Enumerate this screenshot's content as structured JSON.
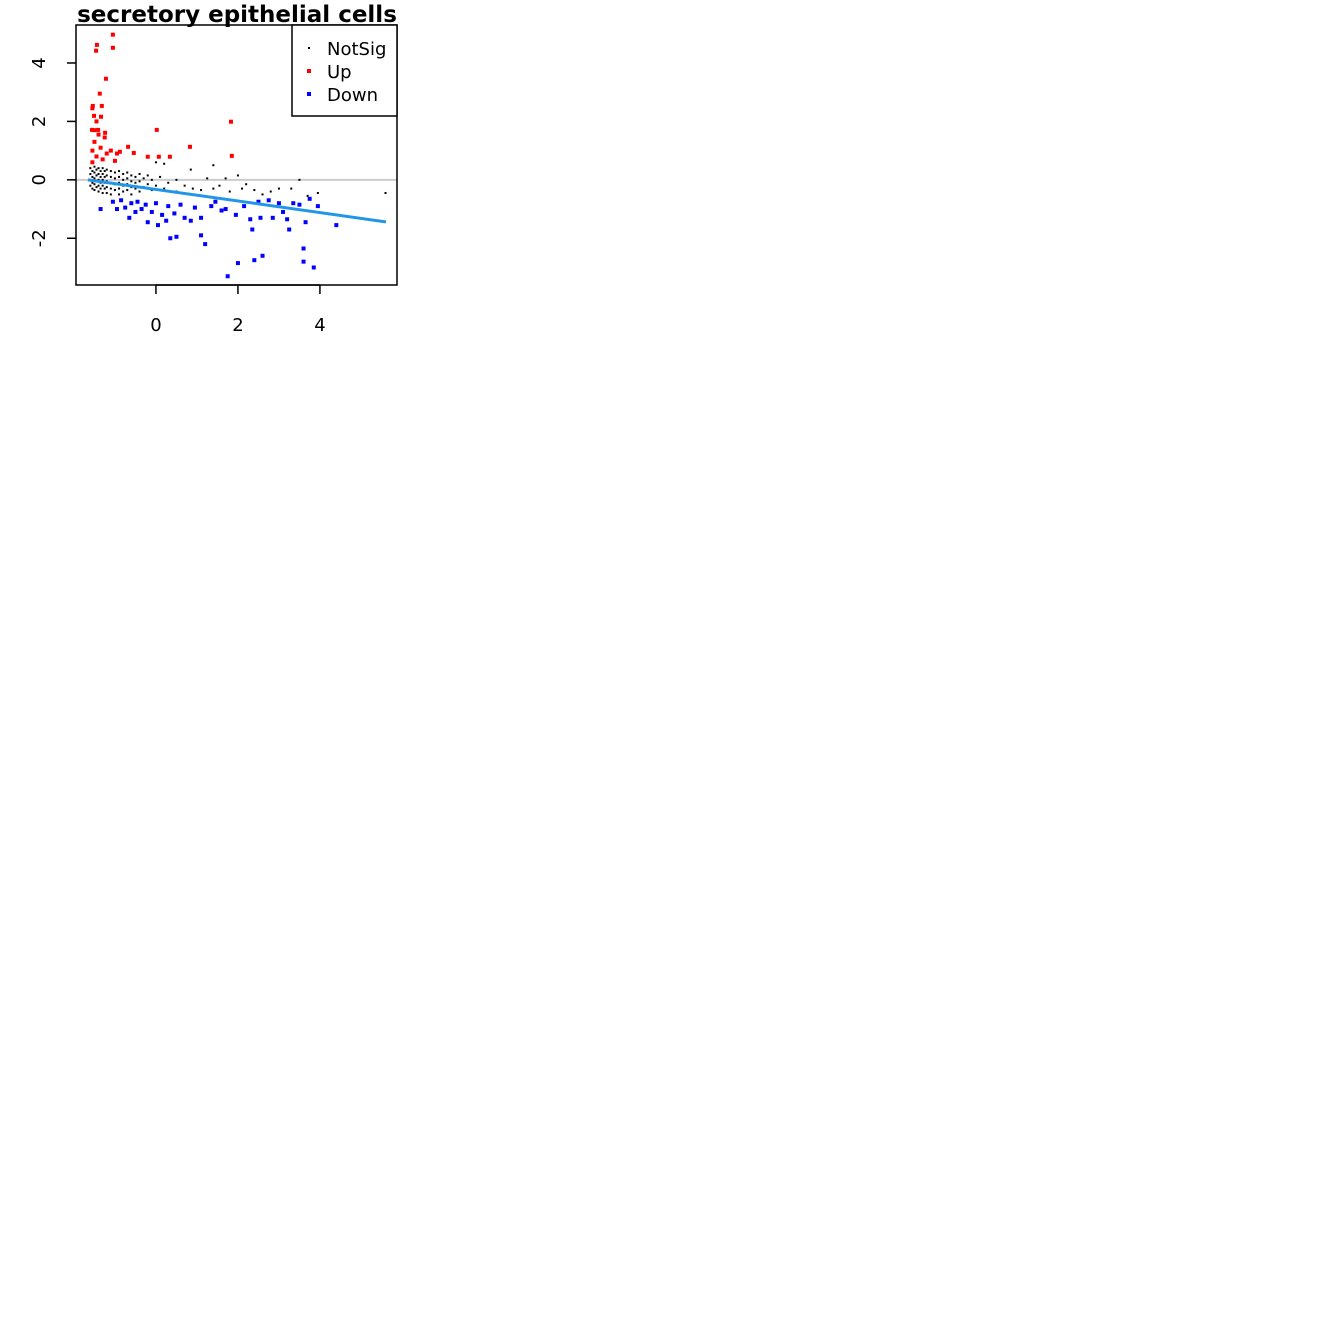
{
  "chart_data": {
    "type": "scatter",
    "title": "secretory epithelial cells",
    "xlabel": "",
    "ylabel": "",
    "xlim": [
      -1.95,
      5.88
    ],
    "ylim": [
      -3.6,
      5.3
    ],
    "x_ticks": [
      0,
      2,
      4
    ],
    "y_ticks": [
      -2,
      0,
      2,
      4
    ],
    "grid": false,
    "legend_position": "top-right",
    "reference_line": {
      "y": 0,
      "color": "#cccccc"
    },
    "trend_line": {
      "x": [
        -1.66,
        5.61
      ],
      "y": [
        0.0,
        -1.44
      ],
      "color": "#2196e8"
    },
    "series": [
      {
        "name": "NotSig",
        "color": "#000000",
        "points": [
          [
            -1.6,
            0.4
          ],
          [
            -1.6,
            0.2
          ],
          [
            -1.6,
            0
          ],
          [
            -1.6,
            -0.2
          ],
          [
            -1.55,
            0.3
          ],
          [
            -1.55,
            0.1
          ],
          [
            -1.55,
            -0.1
          ],
          [
            -1.55,
            -0.3
          ],
          [
            -1.5,
            0.45
          ],
          [
            -1.5,
            0.25
          ],
          [
            -1.5,
            0.05
          ],
          [
            -1.5,
            -0.15
          ],
          [
            -1.5,
            -0.35
          ],
          [
            -1.45,
            0.35
          ],
          [
            -1.45,
            0.15
          ],
          [
            -1.45,
            -0.05
          ],
          [
            -1.45,
            -0.25
          ],
          [
            -1.4,
            0.4
          ],
          [
            -1.4,
            0.2
          ],
          [
            -1.4,
            0
          ],
          [
            -1.4,
            -0.2
          ],
          [
            -1.4,
            -0.4
          ],
          [
            -1.35,
            0.3
          ],
          [
            -1.35,
            0.1
          ],
          [
            -1.35,
            -0.1
          ],
          [
            -1.35,
            -0.3
          ],
          [
            -1.3,
            0.4
          ],
          [
            -1.3,
            0.2
          ],
          [
            -1.3,
            0
          ],
          [
            -1.3,
            -0.2
          ],
          [
            -1.3,
            -0.45
          ],
          [
            -1.25,
            0.3
          ],
          [
            -1.25,
            0.1
          ],
          [
            -1.25,
            -0.1
          ],
          [
            -1.25,
            -0.3
          ],
          [
            -1.2,
            0.35
          ],
          [
            -1.2,
            0.15
          ],
          [
            -1.2,
            -0.05
          ],
          [
            -1.2,
            -0.25
          ],
          [
            -1.2,
            -0.45
          ],
          [
            -1.1,
            0.3
          ],
          [
            -1.1,
            0.1
          ],
          [
            -1.1,
            -0.1
          ],
          [
            -1.1,
            -0.3
          ],
          [
            -1.1,
            -0.5
          ],
          [
            -1.0,
            0.25
          ],
          [
            -1.0,
            0.05
          ],
          [
            -1.0,
            -0.15
          ],
          [
            -1.0,
            -0.35
          ],
          [
            -0.9,
            0.3
          ],
          [
            -0.9,
            0.1
          ],
          [
            -0.9,
            -0.1
          ],
          [
            -0.9,
            -0.3
          ],
          [
            -0.9,
            -0.5
          ],
          [
            -0.8,
            0.2
          ],
          [
            -0.8,
            0
          ],
          [
            -0.8,
            -0.2
          ],
          [
            -0.8,
            -0.4
          ],
          [
            -0.7,
            0.25
          ],
          [
            -0.7,
            0.05
          ],
          [
            -0.7,
            -0.15
          ],
          [
            -0.7,
            -0.35
          ],
          [
            -0.6,
            0.15
          ],
          [
            -0.6,
            -0.05
          ],
          [
            -0.6,
            -0.25
          ],
          [
            -0.6,
            -0.5
          ],
          [
            -0.5,
            0.1
          ],
          [
            -0.5,
            -0.1
          ],
          [
            -0.5,
            -0.3
          ],
          [
            -0.4,
            0.2
          ],
          [
            -0.4,
            -0.05
          ],
          [
            -0.4,
            -0.4
          ],
          [
            -0.3,
            0.05
          ],
          [
            -0.3,
            -0.25
          ],
          [
            -0.2,
            0.15
          ],
          [
            -0.2,
            -0.15
          ],
          [
            -0.1,
            0.0
          ],
          [
            -0.1,
            -0.35
          ],
          [
            0,
            0.6
          ],
          [
            0,
            -0.2
          ],
          [
            0.1,
            0.1
          ],
          [
            0.2,
            0.55
          ],
          [
            0.2,
            -0.3
          ],
          [
            0.3,
            -0.1
          ],
          [
            0.5,
            0.0
          ],
          [
            0.5,
            -0.4
          ],
          [
            0.7,
            -0.2
          ],
          [
            0.85,
            0.35
          ],
          [
            0.9,
            -0.3
          ],
          [
            1.1,
            -0.35
          ],
          [
            1.25,
            0.05
          ],
          [
            1.4,
            0.5
          ],
          [
            1.4,
            -0.3
          ],
          [
            1.55,
            -0.2
          ],
          [
            1.7,
            0.05
          ],
          [
            1.8,
            -0.4
          ],
          [
            2.0,
            0.15
          ],
          [
            2.1,
            -0.3
          ],
          [
            2.2,
            -0.15
          ],
          [
            2.4,
            -0.35
          ],
          [
            2.6,
            -0.5
          ],
          [
            2.8,
            -0.4
          ],
          [
            3.0,
            -0.3
          ],
          [
            3.3,
            -0.3
          ],
          [
            3.5,
            0.0
          ],
          [
            3.7,
            -0.55
          ],
          [
            3.95,
            -0.45
          ],
          [
            5.6,
            -0.45
          ]
        ]
      },
      {
        "name": "Up",
        "color": "#ff0000",
        "points": [
          [
            -1.05,
            4.97
          ],
          [
            -1.44,
            4.62
          ],
          [
            -1.46,
            4.42
          ],
          [
            -1.05,
            4.52
          ],
          [
            -1.22,
            3.46
          ],
          [
            -1.37,
            2.95
          ],
          [
            -1.32,
            2.53
          ],
          [
            -1.54,
            2.53
          ],
          [
            -1.51,
            2.19
          ],
          [
            -1.34,
            2.16
          ],
          [
            1.83,
            1.99
          ],
          [
            0.02,
            1.71
          ],
          [
            -1.56,
            1.71
          ],
          [
            -1.41,
            1.71
          ],
          [
            -1.24,
            1.61
          ],
          [
            0.83,
            1.13
          ],
          [
            -0.68,
            1.13
          ],
          [
            1.85,
            0.82
          ],
          [
            -0.2,
            0.79
          ],
          [
            0.07,
            0.79
          ],
          [
            0.34,
            0.79
          ],
          [
            -0.88,
            0.96
          ],
          [
            -0.54,
            0.92
          ],
          [
            -1.55,
            1.0
          ],
          [
            -1.5,
            1.3
          ],
          [
            -1.45,
            0.8
          ],
          [
            -1.55,
            0.6
          ],
          [
            -1.4,
            1.55
          ],
          [
            -1.35,
            1.1
          ],
          [
            -1.3,
            0.7
          ],
          [
            -1.25,
            1.45
          ],
          [
            -1.2,
            0.9
          ],
          [
            -1.1,
            1.0
          ],
          [
            -1.0,
            0.65
          ],
          [
            -0.95,
            0.9
          ],
          [
            -1.5,
            1.7
          ],
          [
            -1.45,
            2.0
          ],
          [
            -1.55,
            2.45
          ]
        ]
      },
      {
        "name": "Down",
        "color": "#0000ff",
        "points": [
          [
            -1.35,
            -1.0
          ],
          [
            -1.05,
            -0.75
          ],
          [
            -0.95,
            -1.0
          ],
          [
            -0.85,
            -0.7
          ],
          [
            -0.75,
            -0.95
          ],
          [
            -0.65,
            -1.3
          ],
          [
            -0.6,
            -0.8
          ],
          [
            -0.5,
            -1.1
          ],
          [
            -0.45,
            -0.75
          ],
          [
            -0.35,
            -1.0
          ],
          [
            -0.25,
            -0.85
          ],
          [
            -0.2,
            -1.45
          ],
          [
            -0.1,
            -1.1
          ],
          [
            0,
            -0.8
          ],
          [
            0.05,
            -1.55
          ],
          [
            0.15,
            -1.2
          ],
          [
            0.25,
            -1.4
          ],
          [
            0.3,
            -0.9
          ],
          [
            0.35,
            -2.0
          ],
          [
            0.45,
            -1.15
          ],
          [
            0.5,
            -1.95
          ],
          [
            0.6,
            -0.85
          ],
          [
            0.7,
            -1.3
          ],
          [
            0.85,
            -1.4
          ],
          [
            0.95,
            -0.95
          ],
          [
            1.1,
            -1.3
          ],
          [
            1.1,
            -1.9
          ],
          [
            1.2,
            -2.2
          ],
          [
            1.35,
            -0.9
          ],
          [
            1.45,
            -0.75
          ],
          [
            1.6,
            -1.05
          ],
          [
            1.7,
            -1.0
          ],
          [
            1.75,
            -3.3
          ],
          [
            1.95,
            -1.2
          ],
          [
            2.0,
            -2.85
          ],
          [
            2.15,
            -0.9
          ],
          [
            2.3,
            -1.35
          ],
          [
            2.35,
            -1.7
          ],
          [
            2.4,
            -2.75
          ],
          [
            2.5,
            -0.75
          ],
          [
            2.55,
            -1.3
          ],
          [
            2.6,
            -2.6
          ],
          [
            2.75,
            -0.7
          ],
          [
            2.85,
            -1.3
          ],
          [
            3.0,
            -0.8
          ],
          [
            3.1,
            -1.1
          ],
          [
            3.2,
            -1.35
          ],
          [
            3.25,
            -1.7
          ],
          [
            3.35,
            -0.8
          ],
          [
            3.5,
            -0.85
          ],
          [
            3.6,
            -2.35
          ],
          [
            3.6,
            -2.8
          ],
          [
            3.65,
            -1.45
          ],
          [
            3.75,
            -0.65
          ],
          [
            3.85,
            -3.0
          ],
          [
            3.95,
            -0.9
          ],
          [
            4.4,
            -1.55
          ]
        ]
      }
    ]
  }
}
